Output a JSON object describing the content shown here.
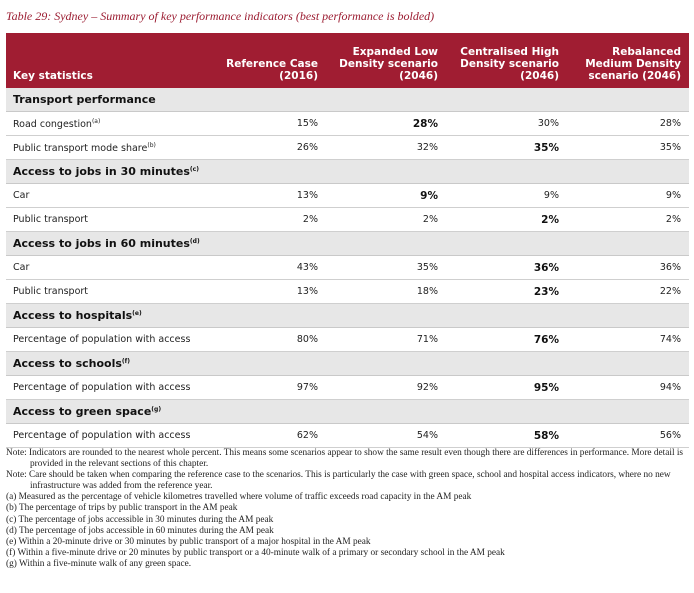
{
  "caption": "Table 29: Sydney – Summary of key performance indicators (best performance is bolded)",
  "table": {
    "columns": [
      [
        "Key statistics"
      ],
      [
        "Reference Case",
        "(2016)"
      ],
      [
        "Expanded Low",
        "Density scenario",
        "(2046)"
      ],
      [
        "Centralised High",
        "Density scenario",
        "(2046)"
      ],
      [
        "Rebalanced",
        "Medium Density",
        "scenario (2046)"
      ]
    ],
    "sections": [
      {
        "title": "Transport performance",
        "rows": [
          {
            "label": "Road congestion",
            "note": "(a)",
            "values": [
              "15%",
              "28%",
              "30%",
              "28%"
            ],
            "best": 1
          },
          {
            "label": "Public transport mode share",
            "note": "(b)",
            "values": [
              "26%",
              "32%",
              "35%",
              "35%"
            ],
            "best": 2
          }
        ]
      },
      {
        "title": "Access to jobs in 30 minutes",
        "note": "(c)",
        "rows": [
          {
            "label": "Car",
            "values": [
              "13%",
              "9%",
              "9%",
              "9%"
            ],
            "best": 1
          },
          {
            "label": "Public transport",
            "values": [
              "2%",
              "2%",
              "2%",
              "2%"
            ],
            "best": 2
          }
        ]
      },
      {
        "title": "Access to jobs in 60 minutes",
        "note": "(d)",
        "rows": [
          {
            "label": "Car",
            "values": [
              "43%",
              "35%",
              "36%",
              "36%"
            ],
            "best": 2
          },
          {
            "label": "Public transport",
            "values": [
              "13%",
              "18%",
              "23%",
              "22%"
            ],
            "best": 2
          }
        ]
      },
      {
        "title": "Access to hospitals",
        "note": "(e)",
        "rows": [
          {
            "label": "Percentage of population with access",
            "values": [
              "80%",
              "71%",
              "76%",
              "74%"
            ],
            "best": 2
          }
        ]
      },
      {
        "title": "Access to schools",
        "note": "(f)",
        "rows": [
          {
            "label": "Percentage of population with access",
            "values": [
              "97%",
              "92%",
              "95%",
              "94%"
            ],
            "best": 2
          }
        ]
      },
      {
        "title": "Access to green space",
        "note": "(g)",
        "rows": [
          {
            "label": "Percentage of population with access",
            "values": [
              "62%",
              "54%",
              "58%",
              "56%"
            ],
            "best": 2
          }
        ]
      }
    ]
  },
  "notes": [
    "Note: Indicators are rounded to the nearest whole percent. This means some scenarios appear to show the same result even though there are differences in performance. More detail is provided in the relevant sections of this chapter.",
    "Note: Care should be taken when comparing the reference case to the scenarios. This is particularly the case with green space, school and hospital access indicators, where no new infrastructure was added from the reference year.",
    "(a) Measured as the percentage of vehicle kilometres travelled where volume of traffic exceeds road capacity in the AM peak",
    "(b) The percentage of trips by public transport in the AM peak",
    "(c) The percentage of jobs accessible in 30 minutes during the AM peak",
    "(d) The percentage of jobs accessible in 60 minutes during the AM peak",
    "(e) Within a 20-minute drive or 30 minutes by public transport of a major hospital in the AM peak",
    "(f) Within a five-minute drive or 20 minutes by public transport or a 40-minute walk of a primary or secondary school in the AM peak",
    "(g) Within a five-minute walk of any green space."
  ]
}
